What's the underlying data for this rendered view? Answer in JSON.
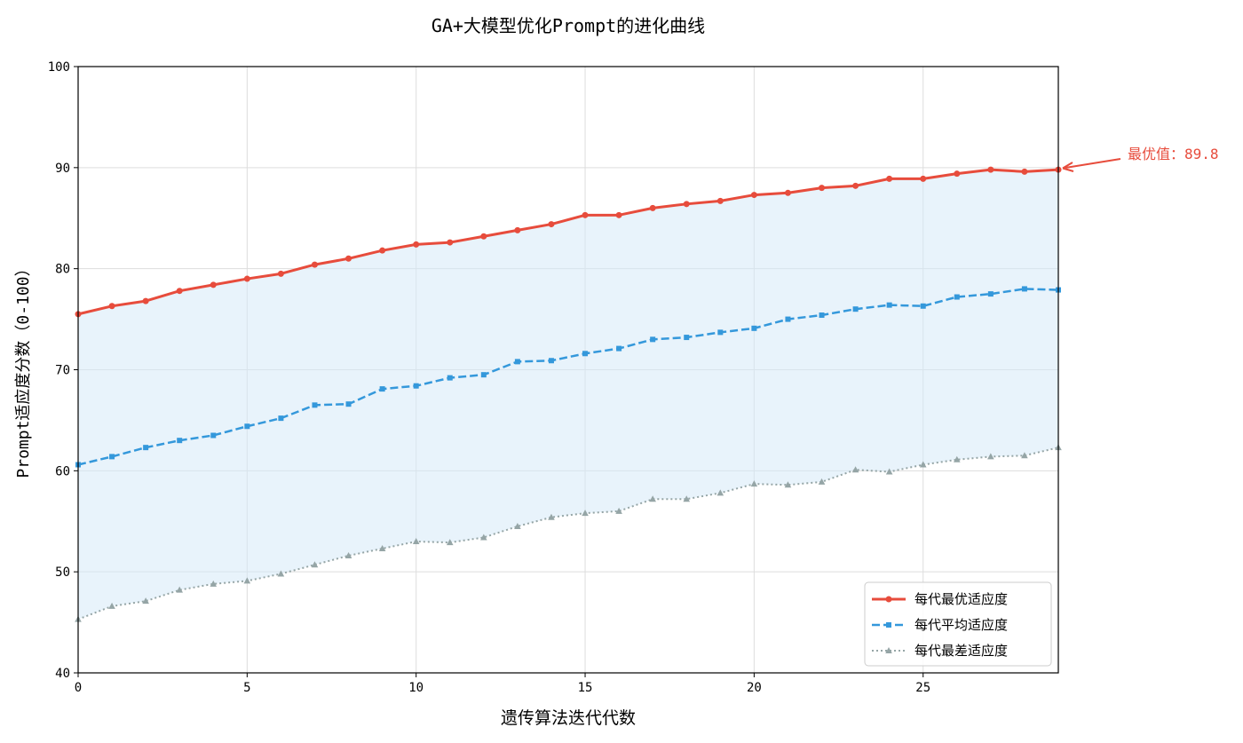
{
  "chart_data": {
    "type": "line",
    "title": "GA+大模型优化Prompt的进化曲线",
    "xlabel": "遗传算法迭代代数",
    "ylabel": "Prompt适应度分数（0-100）",
    "xlim": [
      0,
      29
    ],
    "ylim": [
      40,
      100
    ],
    "xticks": [
      0,
      5,
      10,
      15,
      20,
      25
    ],
    "yticks": [
      40,
      50,
      60,
      70,
      80,
      90,
      100
    ],
    "grid": true,
    "legend_position": "bottom-right",
    "fill_between": {
      "from_series": "每代最差适应度",
      "to_series": "每代最优适应度",
      "color": "#d6eaf8"
    },
    "x": [
      0,
      1,
      2,
      3,
      4,
      5,
      6,
      7,
      8,
      9,
      10,
      11,
      12,
      13,
      14,
      15,
      16,
      17,
      18,
      19,
      20,
      21,
      22,
      23,
      24,
      25,
      26,
      27,
      28,
      29
    ],
    "series": [
      {
        "name": "每代最优适应度",
        "color": "#e74c3c",
        "style": "solid",
        "marker": "circle",
        "values": [
          75.5,
          76.3,
          76.8,
          77.8,
          78.4,
          79.0,
          79.5,
          80.4,
          81.0,
          81.8,
          82.4,
          82.6,
          83.2,
          83.8,
          84.4,
          85.3,
          85.3,
          86.0,
          86.4,
          86.7,
          87.3,
          87.5,
          88.0,
          88.2,
          88.9,
          88.9,
          89.4,
          89.8,
          89.6,
          89.8
        ]
      },
      {
        "name": "每代平均适应度",
        "color": "#3498db",
        "style": "dashed",
        "marker": "square",
        "values": [
          60.6,
          61.4,
          62.3,
          63.0,
          63.5,
          64.4,
          65.2,
          66.5,
          66.6,
          68.1,
          68.4,
          69.2,
          69.5,
          70.8,
          70.9,
          71.6,
          72.1,
          73.0,
          73.2,
          73.7,
          74.1,
          75.0,
          75.4,
          76.0,
          76.4,
          76.3,
          77.2,
          77.5,
          78.0,
          77.9
        ]
      },
      {
        "name": "每代最差适应度",
        "color": "#95a5a6",
        "style": "dotted",
        "marker": "triangle",
        "values": [
          45.3,
          46.6,
          47.1,
          48.2,
          48.8,
          49.1,
          49.8,
          50.7,
          51.6,
          52.3,
          53.0,
          52.9,
          53.4,
          54.5,
          55.4,
          55.8,
          56.0,
          57.2,
          57.2,
          57.8,
          58.7,
          58.6,
          58.9,
          60.1,
          59.9,
          60.6,
          61.1,
          61.4,
          61.5,
          62.3
        ]
      }
    ],
    "annotation": {
      "text": "最优值：89.8",
      "x": 29,
      "y": 89.8,
      "color": "#e74c3c"
    }
  }
}
